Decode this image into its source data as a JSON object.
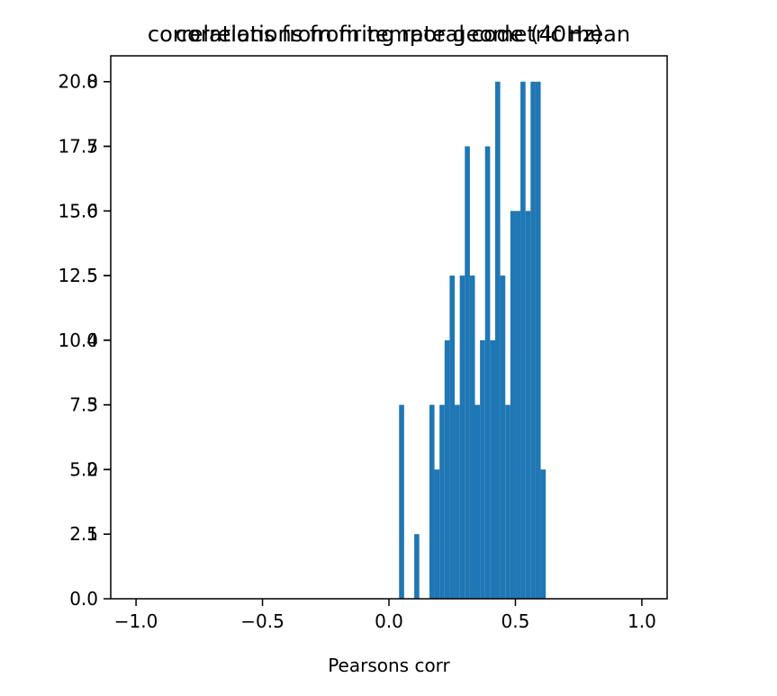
{
  "chart_data": {
    "type": "bar",
    "titles": [
      "correlations from temporal code (40Hz)",
      "correlations from firing rate geometric mean"
    ],
    "xlabel": "Pearsons corr",
    "xlim": [
      -1.1,
      1.1
    ],
    "xticks": [
      -1.0,
      -0.5,
      0.0,
      0.5,
      1.0
    ],
    "xtick_labels": [
      "−1.0",
      "−0.5",
      "0.0",
      "0.5",
      "1.0"
    ],
    "left_axis": {
      "ylim": [
        0,
        21.0
      ],
      "yticks": [
        0.0,
        2.5,
        5.0,
        7.5,
        10.0,
        12.5,
        15.0,
        17.5,
        20.0
      ],
      "ytick_labels": [
        "0.0",
        "2.5",
        "5.0",
        "7.5",
        "10.0",
        "12.5",
        "15.0",
        "17.5",
        "20.0"
      ]
    },
    "right_axis": {
      "ylim": [
        0,
        8.4
      ],
      "yticks": [
        1,
        2,
        3,
        4,
        5,
        6,
        7,
        8
      ],
      "ytick_labels": [
        "1",
        "2",
        "3",
        "4",
        "5",
        "6",
        "7",
        "8"
      ]
    },
    "bin_width": 0.02,
    "bins": [
      {
        "x0": 0.04,
        "value": 3
      },
      {
        "x0": 0.1,
        "value": 1
      },
      {
        "x0": 0.16,
        "value": 3
      },
      {
        "x0": 0.18,
        "value": 2
      },
      {
        "x0": 0.2,
        "value": 3
      },
      {
        "x0": 0.22,
        "value": 4
      },
      {
        "x0": 0.24,
        "value": 5
      },
      {
        "x0": 0.26,
        "value": 3
      },
      {
        "x0": 0.28,
        "value": 5
      },
      {
        "x0": 0.3,
        "value": 7
      },
      {
        "x0": 0.32,
        "value": 5
      },
      {
        "x0": 0.34,
        "value": 3
      },
      {
        "x0": 0.36,
        "value": 4
      },
      {
        "x0": 0.38,
        "value": 7
      },
      {
        "x0": 0.4,
        "value": 4
      },
      {
        "x0": 0.42,
        "value": 8
      },
      {
        "x0": 0.44,
        "value": 5
      },
      {
        "x0": 0.46,
        "value": 3
      },
      {
        "x0": 0.48,
        "value": 6
      },
      {
        "x0": 0.5,
        "value": 6
      },
      {
        "x0": 0.52,
        "value": 8
      },
      {
        "x0": 0.54,
        "value": 6
      },
      {
        "x0": 0.56,
        "value": 8
      },
      {
        "x0": 0.58,
        "value": 8
      },
      {
        "x0": 0.6,
        "value": 2
      }
    ],
    "bar_color": "#1f77b4",
    "grid": false,
    "legend": "none"
  }
}
